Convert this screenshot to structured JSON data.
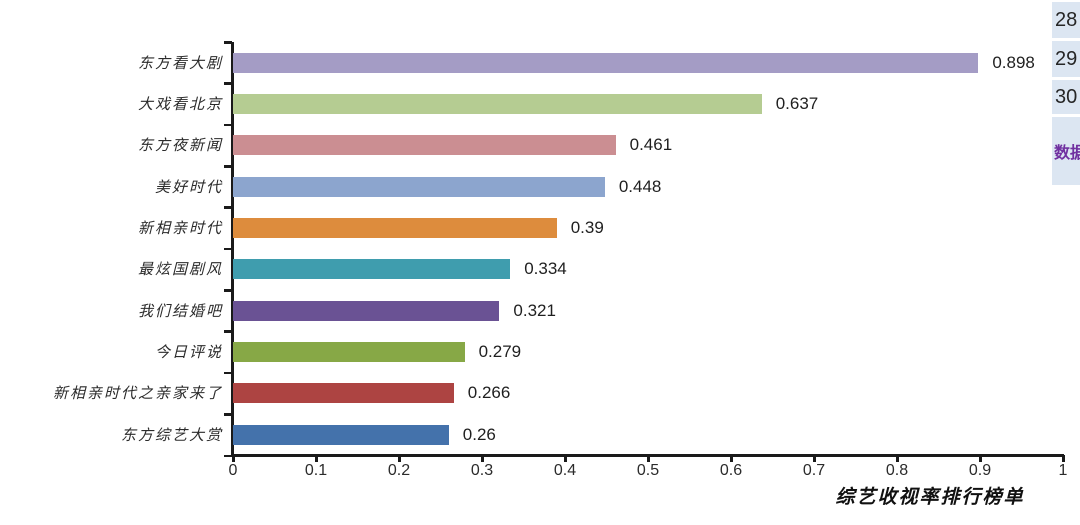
{
  "chart_data": {
    "type": "bar",
    "orientation": "horizontal",
    "title": "",
    "xlabel": "综艺收视率排行榜单",
    "ylabel": "",
    "categories": [
      "东方看大剧",
      "大戏看北京",
      "东方夜新闻",
      "美好时代",
      "新相亲时代",
      "最炫国剧风",
      "我们结婚吧",
      "今日评说",
      "新相亲时代之亲家来了",
      "东方综艺大赏"
    ],
    "values": [
      0.898,
      0.637,
      0.461,
      0.448,
      0.39,
      0.334,
      0.321,
      0.279,
      0.266,
      0.26
    ],
    "value_labels": [
      "0.898",
      "0.637",
      "0.461",
      "0.448",
      "0.39",
      "0.334",
      "0.321",
      "0.279",
      "0.266",
      "0.26"
    ],
    "bar_colors": [
      "#a49cc5",
      "#b5cc92",
      "#cb8e92",
      "#8ca5ce",
      "#dd8c3d",
      "#3f9dae",
      "#6a5294",
      "#87a846",
      "#ad4442",
      "#4472ab"
    ],
    "xlim": [
      0,
      1
    ],
    "x_ticks": [
      "0",
      "0.1",
      "0.2",
      "0.3",
      "0.4",
      "0.5",
      "0.6",
      "0.7",
      "0.8",
      "0.9",
      "1"
    ],
    "grid": false,
    "legend": false
  },
  "side_panel": {
    "row_numbers": [
      "28",
      "29",
      "30"
    ],
    "label_text": "数据",
    "label_color": "#7030a0",
    "cell_bg": "#dce6f2"
  }
}
